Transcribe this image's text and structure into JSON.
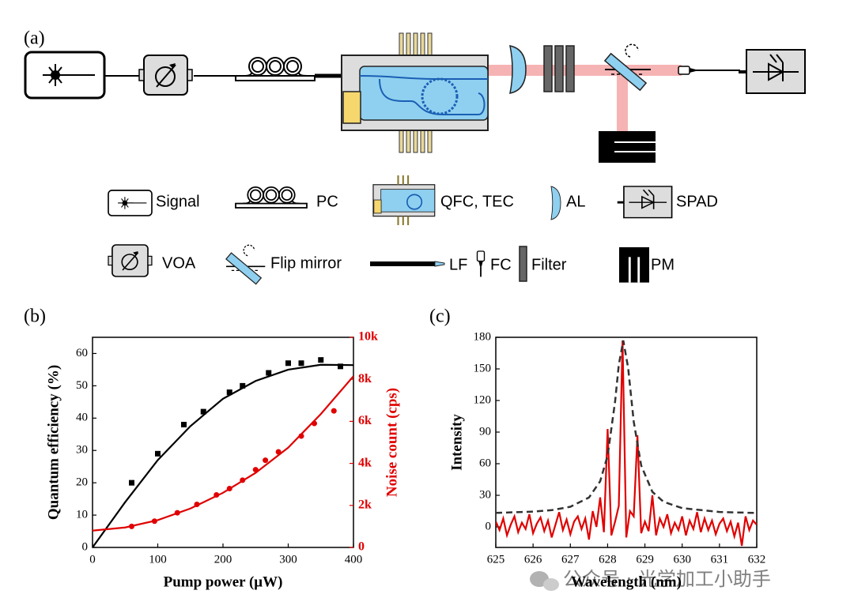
{
  "panel_labels": [
    "(a)",
    "(b)",
    "(c)"
  ],
  "legend": [
    "Signal",
    "PC",
    "QFC, TEC",
    "AL",
    "SPAD",
    "VOA",
    "Flip mirror",
    "LF",
    "FC",
    "Filter",
    "PM"
  ],
  "watermark": "公众号 · 光学加工小助手",
  "chart_data": [
    {
      "type": "scatter",
      "xlabel": "Pump power (μW)",
      "ylabel": "Quantum efficiency (%)",
      "y2label": "Noise count (cps)",
      "y2color": "#e00000",
      "xlim": [
        0,
        400
      ],
      "xticks": [
        0,
        100,
        200,
        300,
        400
      ],
      "ylim": [
        0,
        65
      ],
      "yticks": [
        0,
        10,
        20,
        30,
        40,
        50,
        60
      ],
      "y2lim": [
        0,
        10000
      ],
      "y2ticks": [
        0,
        {
          "value": 2000,
          "label": "2k"
        },
        {
          "value": 4000,
          "label": "4k"
        },
        {
          "value": 6000,
          "label": "6k"
        },
        {
          "value": 8000,
          "label": "8k"
        },
        {
          "value": 10000,
          "label": "10k"
        }
      ],
      "series": [
        {
          "mode": "markers",
          "marker": "square",
          "color": "#000000",
          "x": [
            60,
            100,
            140,
            170,
            210,
            230,
            270,
            300,
            320,
            350,
            380
          ],
          "values": [
            20,
            29,
            38,
            42,
            48,
            50,
            54,
            57,
            57,
            58,
            56
          ]
        },
        {
          "mode": "line",
          "color": "#000000",
          "x": [
            0,
            25,
            50,
            100,
            150,
            200,
            250,
            300,
            350,
            400
          ],
          "values": [
            0,
            7,
            14,
            27,
            37.5,
            46,
            51.5,
            55,
            56.5,
            56.4
          ]
        },
        {
          "mode": "markers",
          "marker": "circle",
          "color": "#e00000",
          "axis": "y2",
          "x": [
            60,
            95,
            130,
            160,
            190,
            210,
            230,
            250,
            265,
            285,
            320,
            340,
            370
          ],
          "values": [
            1000,
            1250,
            1650,
            2050,
            2500,
            2800,
            3200,
            3700,
            4150,
            4550,
            5300,
            5900,
            6500
          ]
        },
        {
          "mode": "line",
          "color": "#e00000",
          "axis": "y2",
          "x": [
            0,
            50,
            100,
            150,
            200,
            250,
            300,
            350,
            400
          ],
          "values": [
            800,
            950,
            1300,
            1850,
            2600,
            3550,
            4750,
            6350,
            8150
          ]
        }
      ]
    },
    {
      "type": "line",
      "xlabel": "Wavelength (nm)",
      "ylabel": "Intensity",
      "xlim": [
        625,
        632
      ],
      "xticks": [
        625,
        626,
        627,
        628,
        629,
        630,
        631,
        632
      ],
      "ylim": [
        -19.5,
        180
      ],
      "yticks": [
        0,
        30,
        60,
        90,
        120,
        150,
        180
      ],
      "series": [
        {
          "mode": "line",
          "color": "#e00000",
          "x": [
            625.0,
            625.1,
            625.2,
            625.3,
            625.4,
            625.5,
            625.6,
            625.7,
            625.8,
            625.9,
            626.0,
            626.1,
            626.2,
            626.3,
            626.4,
            626.5,
            626.6,
            626.7,
            626.8,
            626.9,
            627.0,
            627.1,
            627.2,
            627.3,
            627.4,
            627.5,
            627.6,
            627.7,
            627.8,
            627.9,
            628.0,
            628.1,
            628.2,
            628.3,
            628.4,
            628.5,
            628.6,
            628.7,
            628.8,
            628.9,
            629.0,
            629.1,
            629.2,
            629.3,
            629.4,
            629.5,
            629.6,
            629.7,
            629.8,
            629.9,
            630.0,
            630.1,
            630.2,
            630.3,
            630.4,
            630.5,
            630.6,
            630.7,
            630.8,
            630.9,
            631.0,
            631.1,
            631.2,
            631.3,
            631.4,
            631.5,
            631.6,
            631.7,
            631.8,
            631.9,
            632.0
          ],
          "values": [
            5,
            -3,
            8,
            -8,
            2,
            10,
            -5,
            4,
            -2,
            12,
            -6,
            3,
            9,
            -4,
            6,
            -10,
            2,
            14,
            -3,
            7,
            -7,
            5,
            10,
            -2,
            8,
            -12,
            15,
            0,
            28,
            -5,
            93,
            -8,
            5,
            20,
            177,
            -10,
            15,
            10,
            87,
            -6,
            5,
            -4,
            30,
            -8,
            8,
            0,
            12,
            -6,
            4,
            -3,
            10,
            -8,
            6,
            -2,
            14,
            -5,
            8,
            -3,
            6,
            -7,
            3,
            8,
            -4,
            5,
            -9,
            4,
            -18,
            10,
            -3,
            6,
            2
          ]
        },
        {
          "mode": "line",
          "dash": true,
          "color": "#333333",
          "x": [
            625,
            626,
            626.5,
            627,
            627.5,
            627.8,
            628,
            628.2,
            628.3,
            628.42,
            628.55,
            628.7,
            628.9,
            629.2,
            629.5,
            630,
            631,
            632
          ],
          "values": [
            13.3,
            14.5,
            15.9,
            19.1,
            27.9,
            43.3,
            67.7,
            119,
            154,
            177,
            151,
            100,
            58.3,
            33.3,
            23.8,
            17.8,
            14.2,
            13.2
          ]
        }
      ]
    }
  ]
}
